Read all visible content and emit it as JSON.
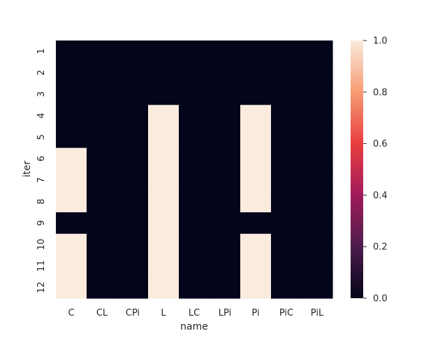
{
  "chart_data": {
    "type": "heatmap",
    "title": "",
    "xlabel": "name",
    "ylabel": "iter",
    "x_categories": [
      "C",
      "CL",
      "CPi",
      "L",
      "LC",
      "LPi",
      "Pi",
      "PiC",
      "PiL"
    ],
    "y_categories": [
      "1",
      "2",
      "3",
      "4",
      "5",
      "6",
      "7",
      "8",
      "9",
      "10",
      "11",
      "12"
    ],
    "values": [
      [
        0,
        0,
        0,
        0,
        0,
        0,
        0,
        0,
        0
      ],
      [
        0,
        0,
        0,
        0,
        0,
        0,
        0,
        0,
        0
      ],
      [
        0,
        0,
        0,
        0,
        0,
        0,
        0,
        0,
        0
      ],
      [
        0,
        0,
        0,
        1,
        0,
        0,
        1,
        0,
        0
      ],
      [
        0,
        0,
        0,
        1,
        0,
        0,
        1,
        0,
        0
      ],
      [
        1,
        0,
        0,
        1,
        0,
        0,
        1,
        0,
        0
      ],
      [
        1,
        0,
        0,
        1,
        0,
        0,
        1,
        0,
        0
      ],
      [
        1,
        0,
        0,
        1,
        0,
        0,
        1,
        0,
        0
      ],
      [
        0,
        0,
        0,
        1,
        0,
        0,
        0,
        0,
        0
      ],
      [
        1,
        0,
        0,
        1,
        0,
        0,
        1,
        0,
        0
      ],
      [
        1,
        0,
        0,
        1,
        0,
        0,
        1,
        0,
        0
      ],
      [
        1,
        0,
        0,
        1,
        0,
        0,
        1,
        0,
        0
      ]
    ],
    "colorbar": {
      "range": [
        0.0,
        1.0
      ],
      "ticks": [
        "0.0",
        "0.2",
        "0.4",
        "0.6",
        "0.8",
        "1.0"
      ],
      "colormap": "rocket",
      "colormap_stops": [
        "#03051a",
        "#4c1d4b",
        "#a11a5b",
        "#e83f3f",
        "#f69c73",
        "#faebdd"
      ]
    },
    "grid": false,
    "legend": "colorbar-right"
  }
}
